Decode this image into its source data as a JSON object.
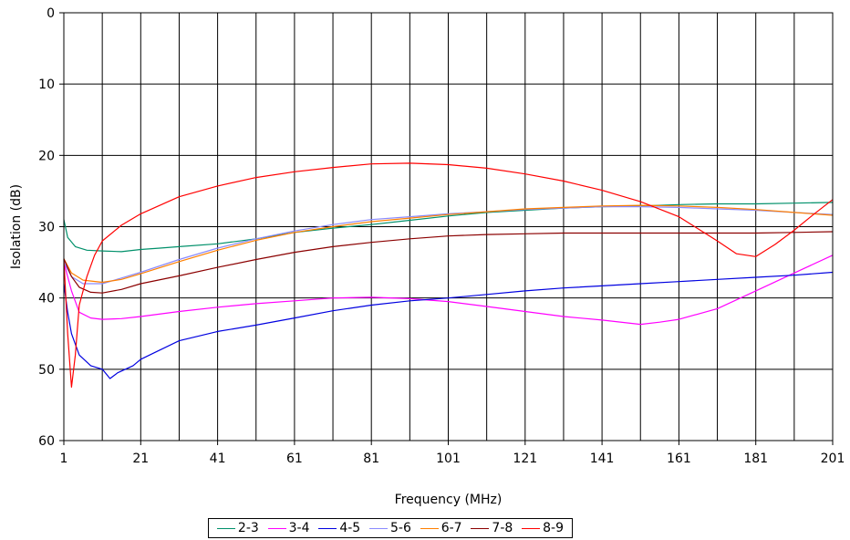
{
  "chart_data": {
    "type": "line",
    "xlabel": "Frequency (MHz)",
    "ylabel": "Isolation (dB)",
    "xlim": [
      1,
      201
    ],
    "ylim": [
      0,
      60
    ],
    "y_inverted": true,
    "grid": true,
    "legend_position": "bottom",
    "x_ticks": [
      "1",
      "21",
      "41",
      "61",
      "81",
      "101",
      "121",
      "141",
      "161",
      "181",
      "201"
    ],
    "y_ticks": [
      "0",
      "10",
      "20",
      "30",
      "40",
      "50",
      "60"
    ],
    "series": [
      {
        "name": "2-3",
        "color": "#00906a",
        "points": [
          [
            1,
            29
          ],
          [
            2,
            31.5
          ],
          [
            4,
            32.8
          ],
          [
            7,
            33.3
          ],
          [
            11,
            33.4
          ],
          [
            16,
            33.5
          ],
          [
            21,
            33.2
          ],
          [
            26,
            33
          ],
          [
            31,
            32.8
          ],
          [
            41,
            32.4
          ],
          [
            51,
            31.7
          ],
          [
            61,
            30.8
          ],
          [
            71,
            30.2
          ],
          [
            81,
            29.7
          ],
          [
            91,
            29.1
          ],
          [
            101,
            28.5
          ],
          [
            111,
            28
          ],
          [
            121,
            27.7
          ],
          [
            131,
            27.4
          ],
          [
            141,
            27.2
          ],
          [
            151,
            27.1
          ],
          [
            161,
            26.9
          ],
          [
            171,
            26.8
          ],
          [
            181,
            26.8
          ],
          [
            191,
            26.7
          ],
          [
            201,
            26.6
          ]
        ]
      },
      {
        "name": "3-4",
        "color": "#ff00ff",
        "points": [
          [
            1,
            35
          ],
          [
            3,
            39
          ],
          [
            5,
            42
          ],
          [
            8,
            42.8
          ],
          [
            11,
            43
          ],
          [
            16,
            42.9
          ],
          [
            21,
            42.6
          ],
          [
            31,
            41.9
          ],
          [
            41,
            41.3
          ],
          [
            51,
            40.8
          ],
          [
            61,
            40.4
          ],
          [
            71,
            40
          ],
          [
            81,
            39.9
          ],
          [
            91,
            40.1
          ],
          [
            101,
            40.5
          ],
          [
            111,
            41.2
          ],
          [
            121,
            41.9
          ],
          [
            131,
            42.6
          ],
          [
            141,
            43.1
          ],
          [
            151,
            43.7
          ],
          [
            156,
            43.4
          ],
          [
            161,
            43
          ],
          [
            171,
            41.5
          ],
          [
            181,
            39
          ],
          [
            191,
            36.5
          ],
          [
            201,
            34
          ]
        ]
      },
      {
        "name": "4-5",
        "color": "#0000e0",
        "points": [
          [
            1,
            38
          ],
          [
            2,
            42
          ],
          [
            3,
            45
          ],
          [
            5,
            48
          ],
          [
            8,
            49.5
          ],
          [
            11,
            50
          ],
          [
            13,
            51.3
          ],
          [
            15,
            50.5
          ],
          [
            19,
            49.5
          ],
          [
            21,
            48.6
          ],
          [
            26,
            47.3
          ],
          [
            31,
            46
          ],
          [
            41,
            44.7
          ],
          [
            51,
            43.8
          ],
          [
            61,
            42.8
          ],
          [
            71,
            41.8
          ],
          [
            81,
            41
          ],
          [
            91,
            40.4
          ],
          [
            101,
            40
          ],
          [
            111,
            39.5
          ],
          [
            121,
            39
          ],
          [
            131,
            38.6
          ],
          [
            141,
            38.3
          ],
          [
            151,
            38
          ],
          [
            161,
            37.7
          ],
          [
            171,
            37.4
          ],
          [
            181,
            37.1
          ],
          [
            191,
            36.8
          ],
          [
            201,
            36.4
          ]
        ]
      },
      {
        "name": "5-6",
        "color": "#8a8aff",
        "points": [
          [
            1,
            35
          ],
          [
            3,
            37
          ],
          [
            6,
            38
          ],
          [
            11,
            38
          ],
          [
            16,
            37.2
          ],
          [
            21,
            36.4
          ],
          [
            31,
            34.6
          ],
          [
            41,
            33
          ],
          [
            51,
            31.7
          ],
          [
            61,
            30.6
          ],
          [
            71,
            29.7
          ],
          [
            81,
            29
          ],
          [
            91,
            28.6
          ],
          [
            101,
            28.2
          ],
          [
            111,
            27.9
          ],
          [
            121,
            27.6
          ],
          [
            131,
            27.4
          ],
          [
            141,
            27.2
          ],
          [
            151,
            27.2
          ],
          [
            161,
            27.3
          ],
          [
            171,
            27.5
          ],
          [
            181,
            27.7
          ],
          [
            191,
            28
          ],
          [
            201,
            28.3
          ]
        ]
      },
      {
        "name": "6-7",
        "color": "#ff7f00",
        "points": [
          [
            1,
            34.5
          ],
          [
            3,
            36.5
          ],
          [
            6,
            37.5
          ],
          [
            11,
            37.8
          ],
          [
            16,
            37.4
          ],
          [
            21,
            36.6
          ],
          [
            31,
            34.9
          ],
          [
            41,
            33.3
          ],
          [
            51,
            31.9
          ],
          [
            61,
            30.8
          ],
          [
            71,
            30
          ],
          [
            81,
            29.3
          ],
          [
            91,
            28.8
          ],
          [
            101,
            28.3
          ],
          [
            111,
            27.9
          ],
          [
            121,
            27.5
          ],
          [
            131,
            27.3
          ],
          [
            141,
            27.1
          ],
          [
            151,
            27
          ],
          [
            161,
            27.1
          ],
          [
            171,
            27.3
          ],
          [
            181,
            27.6
          ],
          [
            191,
            28
          ],
          [
            201,
            28.4
          ]
        ]
      },
      {
        "name": "7-8",
        "color": "#8b0000",
        "points": [
          [
            1,
            34.5
          ],
          [
            3,
            37
          ],
          [
            5,
            38.5
          ],
          [
            8,
            39.2
          ],
          [
            11,
            39.3
          ],
          [
            16,
            38.8
          ],
          [
            21,
            38
          ],
          [
            31,
            36.9
          ],
          [
            41,
            35.7
          ],
          [
            51,
            34.6
          ],
          [
            61,
            33.6
          ],
          [
            71,
            32.8
          ],
          [
            81,
            32.2
          ],
          [
            91,
            31.7
          ],
          [
            101,
            31.3
          ],
          [
            111,
            31.1
          ],
          [
            121,
            31
          ],
          [
            131,
            30.9
          ],
          [
            141,
            30.9
          ],
          [
            151,
            30.9
          ],
          [
            161,
            30.9
          ],
          [
            171,
            30.9
          ],
          [
            181,
            30.9
          ],
          [
            191,
            30.8
          ],
          [
            201,
            30.7
          ]
        ]
      },
      {
        "name": "8-9",
        "color": "#ff0000",
        "points": [
          [
            1,
            34.5
          ],
          [
            2,
            45
          ],
          [
            3,
            52.5
          ],
          [
            4,
            48
          ],
          [
            5,
            41
          ],
          [
            7,
            37
          ],
          [
            9,
            34
          ],
          [
            11,
            32
          ],
          [
            16,
            29.8
          ],
          [
            21,
            28.2
          ],
          [
            31,
            25.8
          ],
          [
            41,
            24.3
          ],
          [
            51,
            23.1
          ],
          [
            61,
            22.3
          ],
          [
            71,
            21.7
          ],
          [
            81,
            21.2
          ],
          [
            91,
            21.1
          ],
          [
            101,
            21.3
          ],
          [
            111,
            21.8
          ],
          [
            121,
            22.6
          ],
          [
            131,
            23.6
          ],
          [
            141,
            24.9
          ],
          [
            151,
            26.5
          ],
          [
            161,
            28.6
          ],
          [
            171,
            32
          ],
          [
            176,
            33.8
          ],
          [
            181,
            34.2
          ],
          [
            186,
            32.5
          ],
          [
            191,
            30.5
          ],
          [
            196,
            28.3
          ],
          [
            201,
            26.2
          ]
        ]
      }
    ]
  }
}
